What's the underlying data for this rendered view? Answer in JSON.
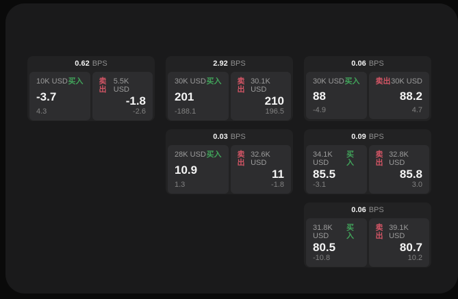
{
  "colors": {
    "buy_green": "#41a35a",
    "sell_red": "#d25565",
    "page_bg": "#0a0a0a",
    "panel_bg": "#1a1a1b",
    "card_bg": "#222223",
    "tile_bg": "#2d2d2f"
  },
  "unit_label": "BPS",
  "cards": [
    {
      "bps_value": "0.62",
      "bps_unit": "BPS",
      "buy": {
        "size": "10K USD",
        "side": "买入",
        "price": "-3.7",
        "sub": "4.3"
      },
      "sell": {
        "side": "卖出",
        "size": "5.5K USD",
        "price": "-1.8",
        "sub": "-2.6"
      }
    },
    {
      "bps_value": "2.92",
      "bps_unit": "BPS",
      "buy": {
        "size": "30K USD",
        "side": "买入",
        "price": "201",
        "sub": "-188.1"
      },
      "sell": {
        "side": "卖出",
        "size": "30.1K USD",
        "price": "210",
        "sub": "196.5"
      }
    },
    {
      "bps_value": "0.06",
      "bps_unit": "BPS",
      "buy": {
        "size": "30K USD",
        "side": "买入",
        "price": "88",
        "sub": "-4.9"
      },
      "sell": {
        "side": "卖出",
        "size": "30K USD",
        "price": "88.2",
        "sub": "4.7"
      }
    },
    {
      "bps_value": "0.03",
      "bps_unit": "BPS",
      "buy": {
        "size": "28K USD",
        "side": "买入",
        "price": "10.9",
        "sub": "1.3"
      },
      "sell": {
        "side": "卖出",
        "size": "32.6K USD",
        "price": "11",
        "sub": "-1.8"
      }
    },
    {
      "bps_value": "0.09",
      "bps_unit": "BPS",
      "buy": {
        "size": "34.1K USD",
        "side": "买入",
        "price": "85.5",
        "sub": "-3.1"
      },
      "sell": {
        "side": "卖出",
        "size": "32.8K USD",
        "price": "85.8",
        "sub": "3.0"
      }
    },
    {
      "bps_value": "0.06",
      "bps_unit": "BPS",
      "buy": {
        "size": "31.8K USD",
        "side": "买入",
        "price": "80.5",
        "sub": "-10.8"
      },
      "sell": {
        "side": "卖出",
        "size": "39.1K USD",
        "price": "80.7",
        "sub": "10.2"
      }
    }
  ]
}
